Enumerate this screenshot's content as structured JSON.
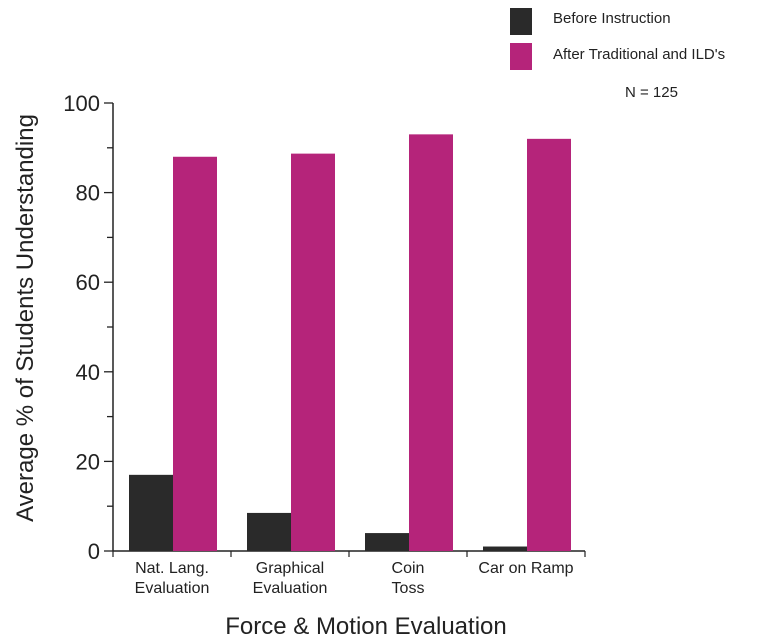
{
  "chart_data": {
    "type": "bar",
    "xlabel": "Force &  Motion Evaluation",
    "ylabel": "Average % of Students Understanding",
    "ylim": [
      0,
      100
    ],
    "yticks": [
      0,
      20,
      40,
      60,
      80,
      100
    ],
    "categories": [
      [
        "Nat. Lang.",
        "Evaluation"
      ],
      [
        "Graphical",
        "Evaluation"
      ],
      [
        "Coin",
        "Toss"
      ],
      [
        "Car on Ramp"
      ]
    ],
    "series": [
      {
        "name": "Before Instruction",
        "color": "#2a2a2a",
        "values": [
          17,
          8.5,
          4,
          1
        ]
      },
      {
        "name": "After Traditional and ILD's",
        "color": "#b5247a",
        "values": [
          88,
          88.7,
          93,
          92
        ]
      }
    ],
    "legend_position": "top-right",
    "annotation": "N = 125",
    "grid": false
  }
}
